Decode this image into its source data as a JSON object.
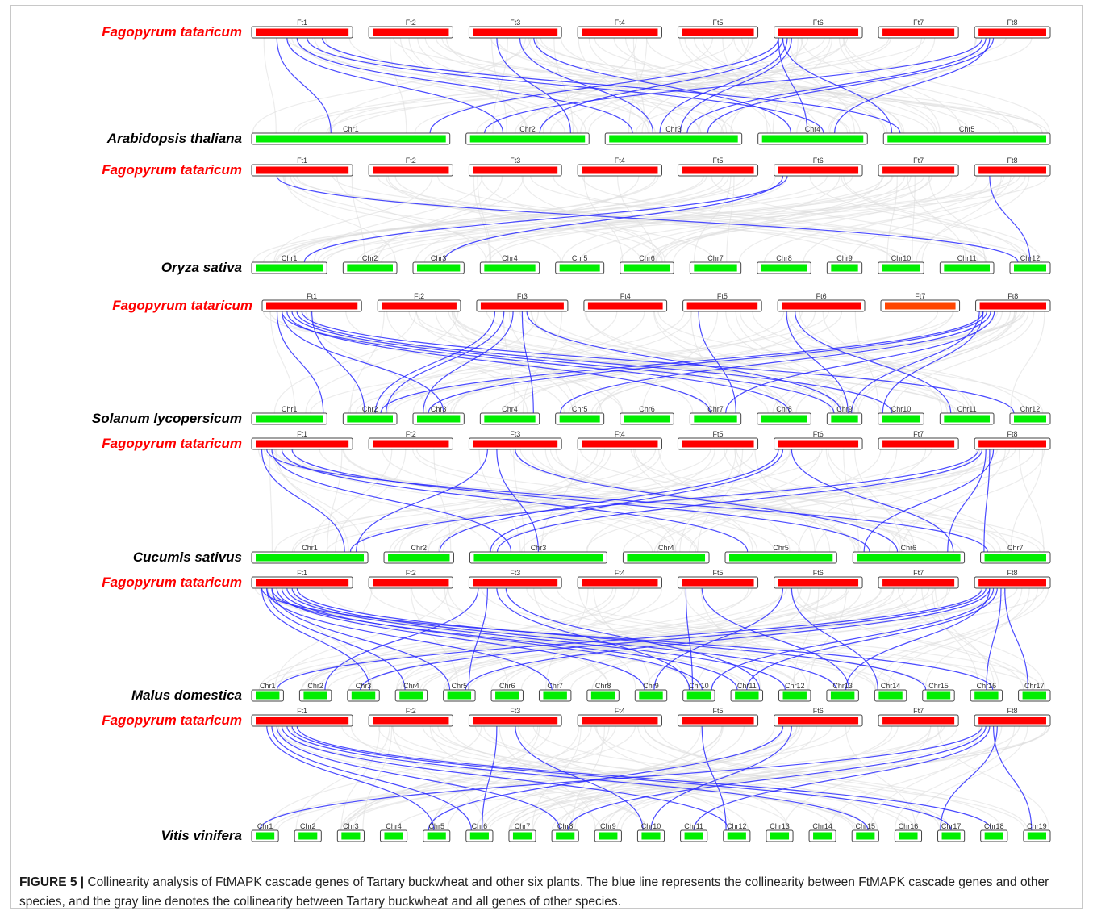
{
  "caption": {
    "label": "FIGURE 5 |",
    "text": "Collinearity analysis of FtMAPK cascade genes of Tartary buckwheat and other six plants. The blue line represents the collinearity between FtMAPK cascade genes and other species, and the gray line denotes the collinearity between Tartary buckwheat and all genes of other species."
  },
  "colors": {
    "ft_chromosome": "#ff0000",
    "ft_chromosome_alt": "#ff4500",
    "other_chromosome": "#00ee00",
    "species_label_ft": "#ff0000",
    "species_label_other": "#000000",
    "mapk_link": "#2b2bff",
    "background_link": "#dcdcdc"
  },
  "reference_species": "Fagopyrum tataricum",
  "ft_chromosomes": [
    "Ft1",
    "Ft2",
    "Ft3",
    "Ft4",
    "Ft5",
    "Ft6",
    "Ft7",
    "Ft8"
  ],
  "panels": [
    {
      "species": "Arabidopsis thaliana",
      "chromosomes": [
        "Chr1",
        "Chr2",
        "Chr3",
        "Chr4",
        "Chr5"
      ],
      "links": [
        [
          0,
          0.25,
          0,
          0.4
        ],
        [
          0,
          0.35,
          1,
          0.3
        ],
        [
          0,
          0.45,
          2,
          0.2
        ],
        [
          0,
          0.55,
          3,
          0.6
        ],
        [
          0,
          0.7,
          4,
          0.1
        ],
        [
          2,
          0.3,
          1,
          0.85
        ],
        [
          2,
          0.55,
          2,
          0.35
        ],
        [
          2,
          0.7,
          3,
          0.3
        ],
        [
          5,
          0.05,
          0,
          0.9
        ],
        [
          5,
          0.1,
          1,
          0.6
        ],
        [
          5,
          0.15,
          2,
          0.4
        ],
        [
          5,
          0.2,
          2,
          0.55
        ],
        [
          5,
          0.05,
          3,
          0.45
        ],
        [
          5,
          0.1,
          4,
          0.05
        ],
        [
          7,
          0.1,
          1,
          0.15
        ],
        [
          7,
          0.15,
          2,
          0.6
        ],
        [
          7,
          0.2,
          3,
          0.7
        ],
        [
          7,
          0.25,
          2,
          0.75
        ]
      ]
    },
    {
      "species": "Oryza sativa",
      "chromosomes": [
        "Chr1",
        "Chr2",
        "Chr3",
        "Chr4",
        "Chr5",
        "Chr6",
        "Chr7",
        "Chr8",
        "Chr9",
        "Chr10",
        "Chr11",
        "Chr12"
      ],
      "links": [
        [
          0,
          0.25,
          11,
          0.2
        ],
        [
          5,
          0.1,
          2,
          0.6
        ],
        [
          5,
          0.15,
          0,
          0.7
        ],
        [
          7,
          0.2,
          11,
          0.5
        ]
      ]
    },
    {
      "species": "Solanum lycopersicum",
      "chromosomes": [
        "Chr1",
        "Chr2",
        "Chr3",
        "Chr4",
        "Chr5",
        "Chr6",
        "Chr7",
        "Chr8",
        "Chr9",
        "Chr10",
        "Chr11",
        "Chr12"
      ],
      "links": [
        [
          0,
          0.15,
          0,
          0.95
        ],
        [
          0,
          0.2,
          2,
          0.6
        ],
        [
          0,
          0.25,
          6,
          0.4
        ],
        [
          0,
          0.3,
          8,
          0.2
        ],
        [
          0,
          0.35,
          9,
          0.3
        ],
        [
          0,
          0.4,
          11,
          0.1
        ],
        [
          0,
          0.5,
          1,
          0.4
        ],
        [
          0,
          0.2,
          7,
          0.6
        ],
        [
          2,
          0.2,
          1,
          0.6
        ],
        [
          2,
          0.3,
          1,
          0.8
        ],
        [
          2,
          0.4,
          2,
          0.2
        ],
        [
          2,
          0.5,
          3,
          0.9
        ],
        [
          2,
          0.55,
          8,
          0.4
        ],
        [
          4,
          0.2,
          6,
          0.9
        ],
        [
          5,
          0.1,
          8,
          0.6
        ],
        [
          5,
          0.2,
          10,
          0.2
        ],
        [
          7,
          0.1,
          1,
          0.7
        ],
        [
          7,
          0.15,
          2,
          0.3
        ],
        [
          7,
          0.2,
          4,
          0.1
        ],
        [
          7,
          0.25,
          6,
          0.7
        ],
        [
          7,
          0.1,
          9,
          0.1
        ],
        [
          7,
          0.05,
          8,
          0.7
        ]
      ]
    },
    {
      "species": "Cucumis sativus",
      "chromosomes": [
        "Chr1",
        "Chr2",
        "Chr3",
        "Chr4",
        "Chr5",
        "Chr6",
        "Chr7"
      ],
      "links": [
        [
          0,
          0.1,
          0,
          0.8
        ],
        [
          0,
          0.2,
          2,
          0.3
        ],
        [
          0,
          0.3,
          4,
          0.2
        ],
        [
          0,
          0.4,
          5,
          0.15
        ],
        [
          0,
          0.15,
          6,
          0.1
        ],
        [
          2,
          0.2,
          0,
          0.9
        ],
        [
          2,
          0.3,
          2,
          0.5
        ],
        [
          2,
          0.5,
          5,
          0.4
        ],
        [
          5,
          0.05,
          1,
          0.8
        ],
        [
          5,
          0.1,
          2,
          0.15
        ],
        [
          5,
          0.2,
          5,
          0.9
        ],
        [
          7,
          0.05,
          0,
          0.85
        ],
        [
          7,
          0.1,
          2,
          0.2
        ],
        [
          7,
          0.15,
          5,
          0.85
        ],
        [
          7,
          0.2,
          6,
          0.05
        ],
        [
          7,
          0.25,
          5,
          0.1
        ]
      ]
    },
    {
      "species": "Malus domestica",
      "chromosomes": [
        "Chr1",
        "Chr2",
        "Chr3",
        "Chr4",
        "Chr5",
        "Chr6",
        "Chr7",
        "Chr8",
        "Chr9",
        "Chr10",
        "Chr11",
        "Chr12",
        "Chr13",
        "Chr14",
        "Chr15",
        "Chr16",
        "Chr17"
      ],
      "links": [
        [
          0,
          0.1,
          2,
          0.7
        ],
        [
          0,
          0.15,
          3,
          0.3
        ],
        [
          0,
          0.2,
          4,
          0.2
        ],
        [
          0,
          0.25,
          8,
          0.3
        ],
        [
          0,
          0.3,
          9,
          0.6
        ],
        [
          0,
          0.35,
          11,
          0.2
        ],
        [
          0,
          0.4,
          12,
          0.3
        ],
        [
          0,
          0.45,
          14,
          0.1
        ],
        [
          0,
          0.1,
          15,
          0.7
        ],
        [
          0,
          0.2,
          10,
          0.2
        ],
        [
          0,
          0.15,
          6,
          0.4
        ],
        [
          2,
          0.1,
          1,
          0.8
        ],
        [
          2,
          0.2,
          4,
          0.8
        ],
        [
          2,
          0.3,
          9,
          0.2
        ],
        [
          2,
          0.4,
          10,
          0.9
        ],
        [
          4,
          0.1,
          9,
          0.3
        ],
        [
          4,
          0.3,
          12,
          0.7
        ],
        [
          5,
          0.1,
          8,
          0.6
        ],
        [
          5,
          0.2,
          13,
          0.1
        ],
        [
          7,
          0.1,
          0,
          0.8
        ],
        [
          7,
          0.15,
          2,
          0.4
        ],
        [
          7,
          0.2,
          4,
          0.7
        ],
        [
          7,
          0.25,
          9,
          0.9
        ],
        [
          7,
          0.3,
          10,
          0.5
        ],
        [
          7,
          0.35,
          15,
          0.5
        ],
        [
          7,
          0.4,
          16,
          0.3
        ],
        [
          7,
          0.2,
          12,
          0.6
        ]
      ]
    },
    {
      "species": "Vitis vinifera",
      "chromosomes": [
        "Chr1",
        "Chr2",
        "Chr3",
        "Chr4",
        "Chr5",
        "Chr6",
        "Chr7",
        "Chr8",
        "Chr9",
        "Chr10",
        "Chr11",
        "Chr12",
        "Chr13",
        "Chr14",
        "Chr15",
        "Chr16",
        "Chr17",
        "Chr18",
        "Chr19"
      ],
      "links": [
        [
          0,
          0.15,
          4,
          0.4
        ],
        [
          0,
          0.2,
          5,
          0.2
        ],
        [
          0,
          0.25,
          7,
          0.3
        ],
        [
          0,
          0.3,
          11,
          0.2
        ],
        [
          0,
          0.35,
          14,
          0.6
        ],
        [
          0,
          0.4,
          16,
          0.5
        ],
        [
          0,
          0.45,
          17,
          0.4
        ],
        [
          2,
          0.3,
          5,
          0.6
        ],
        [
          2,
          0.5,
          9,
          0.2
        ],
        [
          4,
          0.3,
          11,
          0.1
        ],
        [
          5,
          0.1,
          4,
          0.2
        ],
        [
          5,
          0.2,
          9,
          0.5
        ],
        [
          7,
          0.1,
          0,
          0.3
        ],
        [
          7,
          0.15,
          7,
          0.6
        ],
        [
          7,
          0.2,
          10,
          0.5
        ],
        [
          7,
          0.25,
          18,
          0.3
        ],
        [
          7,
          0.3,
          16,
          0.1
        ]
      ]
    }
  ]
}
